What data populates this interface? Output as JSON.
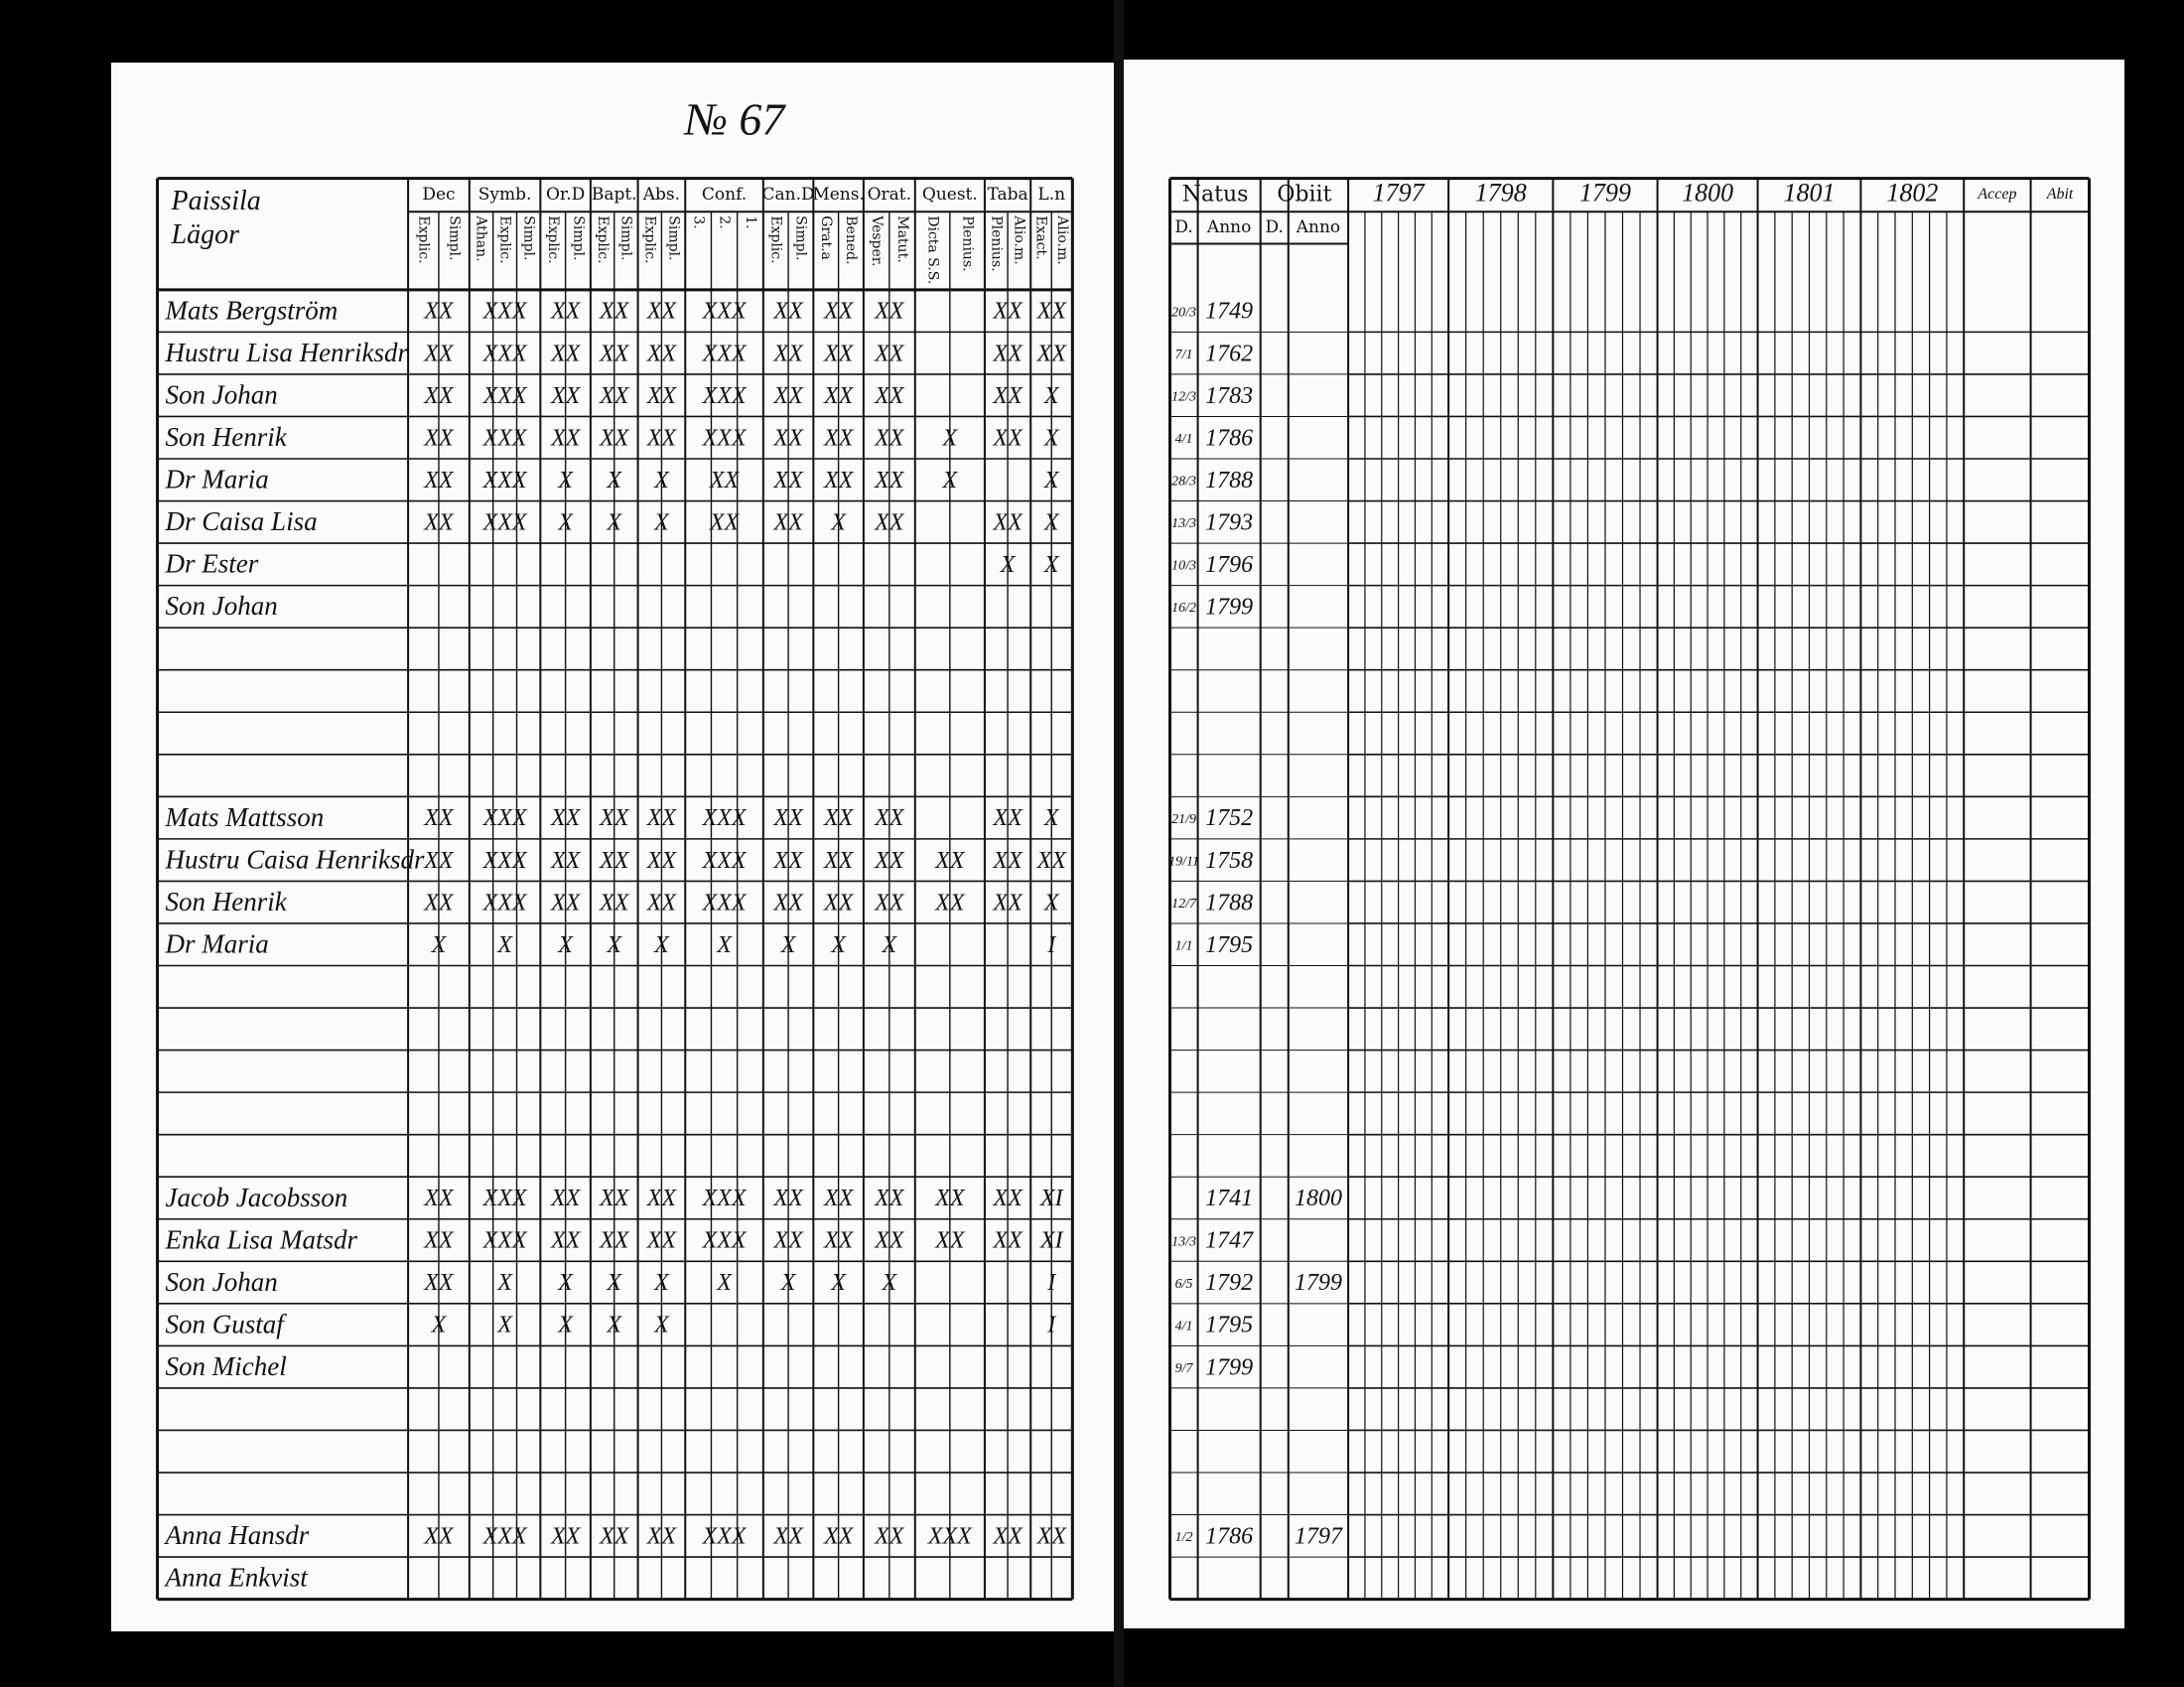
{
  "page_number": "№ 67",
  "left_table": {
    "name_header": [
      "Paissila",
      "Lägor"
    ],
    "columns": [
      {
        "label": "Dec",
        "sub": [
          "Explic.",
          "Simpl."
        ]
      },
      {
        "label": "Symb.",
        "sub": [
          "Athan.",
          "Explic.",
          "Simpl."
        ]
      },
      {
        "label": "Or.D",
        "sub": [
          "Explic.",
          "Simpl."
        ]
      },
      {
        "label": "Bapt.",
        "sub": [
          "Explic.",
          "Simpl."
        ]
      },
      {
        "label": "Abs.",
        "sub": [
          "Explic.",
          "Simpl."
        ]
      },
      {
        "label": "Conf.",
        "sub": [
          "3.",
          "2.",
          "1."
        ]
      },
      {
        "label": "Can.D",
        "sub": [
          "Explic.",
          "Simpl."
        ]
      },
      {
        "label": "Mens.",
        "sub": [
          "Grat.a",
          "Bened."
        ]
      },
      {
        "label": "Orat.",
        "sub": [
          "Vesper.",
          "Matut."
        ]
      },
      {
        "label": "Quest.",
        "sub": [
          "Dicta S.S.",
          "Plenius."
        ]
      },
      {
        "label": "Taba",
        "sub": [
          "Plenius.",
          "Alio.m."
        ]
      },
      {
        "label": "L.n",
        "sub": [
          "Exact.",
          "Alio.m."
        ]
      }
    ]
  },
  "right_table": {
    "natus": {
      "label": "Natus",
      "sub": [
        "D.",
        "Anno"
      ]
    },
    "obiit": {
      "label": "Obiit",
      "sub": [
        "D.",
        "Anno"
      ]
    },
    "years": [
      "1797",
      "1798",
      "1799",
      "1800",
      "1801",
      "1802",
      "Accep",
      "Abit"
    ]
  },
  "households": [
    {
      "members": [
        {
          "name": "Mats Bergström",
          "marks": [
            "XX",
            "XXX",
            "XX",
            "XX",
            "XX",
            "XXX",
            "XX",
            "XX",
            "XX",
            null,
            "XX",
            "XX"
          ],
          "natus_d": "20/3",
          "natus_anno": "1749"
        },
        {
          "name": "Hustru Lisa Henriksdr",
          "marks": [
            "XX",
            "XXX",
            "XX",
            "XX",
            "XX",
            "XXX",
            "XX",
            "XX",
            "XX",
            null,
            "XX",
            "XX"
          ],
          "natus_d": "7/1",
          "natus_anno": "1762"
        },
        {
          "name": "Son Johan",
          "marks": [
            "XX",
            "XXX",
            "XX",
            "XX",
            "XX",
            "XXX",
            "XX",
            "XX",
            "XX",
            null,
            "XX",
            "X"
          ],
          "natus_d": "12/3",
          "natus_anno": "1783"
        },
        {
          "name": "Son Henrik",
          "marks": [
            "XX",
            "XXX",
            "XX",
            "XX",
            "XX",
            "XXX",
            "XX",
            "XX",
            "XX",
            "X",
            "XX",
            "X"
          ],
          "natus_d": "4/1",
          "natus_anno": "1786"
        },
        {
          "name": "Dr Maria",
          "marks": [
            "XX",
            "XXX",
            "X",
            "X",
            "X",
            "XX",
            "XX",
            "XX",
            "XX",
            "X",
            null,
            "X"
          ],
          "natus_d": "28/3",
          "natus_anno": "1788"
        },
        {
          "name": "Dr Caisa Lisa",
          "marks": [
            "XX",
            "XXX",
            "X",
            "X",
            "X",
            "XX",
            "XX",
            "X",
            "XX",
            null,
            "XX",
            "X"
          ],
          "natus_d": "13/3",
          "natus_anno": "1793"
        },
        {
          "name": "Dr Ester",
          "marks": [
            null,
            null,
            null,
            null,
            null,
            null,
            null,
            null,
            null,
            null,
            "X",
            "X"
          ],
          "natus_d": "10/3",
          "natus_anno": "1796"
        },
        {
          "name": "Son Johan",
          "natus_d": "16/2",
          "natus_anno": "1799"
        }
      ]
    },
    {
      "members": [
        {
          "name": "Mats Mattsson",
          "marks": [
            "XX",
            "XXX",
            "XX",
            "XX",
            "XX",
            "XXX",
            "XX",
            "XX",
            "XX",
            null,
            "XX",
            "X"
          ],
          "natus_d": "21/9",
          "natus_anno": "1752"
        },
        {
          "name": "Hustru Caisa Henriksdr",
          "marks": [
            "XX",
            "XXX",
            "XX",
            "XX",
            "XX",
            "XXX",
            "XX",
            "XX",
            "XX",
            "XX",
            "XX",
            "XX"
          ],
          "natus_d": "19/11",
          "natus_anno": "1758"
        },
        {
          "name": "Son Henrik",
          "marks": [
            "XX",
            "XXX",
            "XX",
            "XX",
            "XX",
            "XXX",
            "XX",
            "XX",
            "XX",
            "XX",
            "XX",
            "X"
          ],
          "natus_d": "12/7",
          "natus_anno": "1788"
        },
        {
          "name": "Dr Maria",
          "marks": [
            "X",
            "X",
            "X",
            "X",
            "X",
            "X",
            "X",
            "X",
            "X",
            null,
            null,
            "I"
          ],
          "natus_d": "1/1",
          "natus_anno": "1795"
        }
      ]
    },
    {
      "members": [
        {
          "name": "Jacob Jacobsson",
          "marks": [
            "XX",
            "XXX",
            "XX",
            "XX",
            "XX",
            "XXX",
            "XX",
            "XX",
            "XX",
            "XX",
            "XX",
            "XI"
          ],
          "natus_anno": "1741",
          "obiit_anno": "1800"
        },
        {
          "name": "Enka Lisa Matsdr",
          "marks": [
            "XX",
            "XXX",
            "XX",
            "XX",
            "XX",
            "XXX",
            "XX",
            "XX",
            "XX",
            "XX",
            "XX",
            "XI"
          ],
          "natus_d": "13/3",
          "natus_anno": "1747"
        },
        {
          "name": "Son Johan",
          "marks": [
            "XX",
            "X",
            "X",
            "X",
            "X",
            "X",
            "X",
            "X",
            "X",
            null,
            null,
            "I"
          ],
          "natus_d": "6/5",
          "natus_anno": "1792",
          "obiit_anno": "1799"
        },
        {
          "name": "Son Gustaf",
          "marks": [
            "X",
            "X",
            "X",
            "X",
            "X",
            null,
            null,
            null,
            null,
            null,
            null,
            "I"
          ],
          "natus_d": "4/1",
          "natus_anno": "1795"
        },
        {
          "name": "Son Michel",
          "natus_d": "9/7",
          "natus_anno": "1799"
        }
      ]
    },
    {
      "members": [
        {
          "name": "Anna Hansdr",
          "marks": [
            "XX",
            "XXX",
            "XX",
            "XX",
            "XX",
            "XXX",
            "XX",
            "XX",
            "XX",
            "XXX",
            "XX",
            "XX"
          ],
          "natus_d": "1/2",
          "natus_anno": "1786",
          "obiit_anno": "1797"
        },
        {
          "name": "Anna Enkvist"
        }
      ]
    }
  ]
}
